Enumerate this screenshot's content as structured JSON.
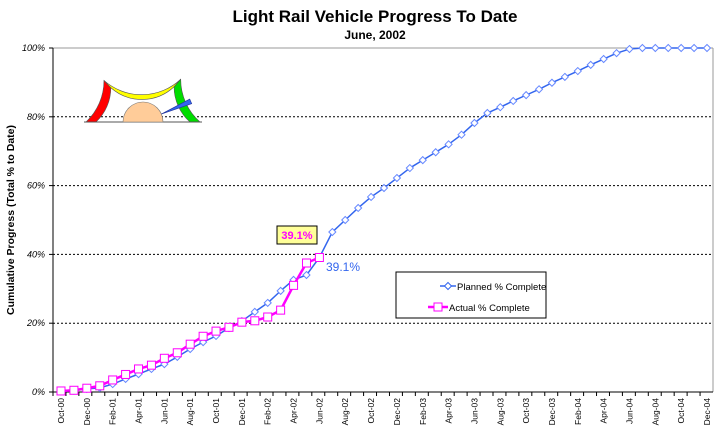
{
  "chart_data": {
    "type": "line",
    "title": "Light Rail Vehicle Progress To Date",
    "subtitle": "June, 2002",
    "xlabel": "",
    "ylabel": "Cumulative Progress (Total % to Date)",
    "ylim": [
      0,
      100
    ],
    "y_ticks": [
      "0%",
      "20%",
      "40%",
      "60%",
      "80%",
      "100%"
    ],
    "y_tick_values": [
      0,
      20,
      40,
      60,
      80,
      100
    ],
    "grid": "horizontal dotted",
    "legend_placement": "center-right",
    "x": [
      "Oct-00",
      "Nov-00",
      "Dec-00",
      "Jan-01",
      "Feb-01",
      "Mar-01",
      "Apr-01",
      "May-01",
      "Jun-01",
      "Jul-01",
      "Aug-01",
      "Sep-01",
      "Oct-01",
      "Nov-01",
      "Dec-01",
      "Jan-02",
      "Feb-02",
      "Mar-02",
      "Apr-02",
      "May-02",
      "Jun-02",
      "Jul-02",
      "Aug-02",
      "Sep-02",
      "Oct-02",
      "Nov-02",
      "Dec-02",
      "Jan-03",
      "Feb-03",
      "Mar-03",
      "Apr-03",
      "May-03",
      "Jun-03",
      "Jul-03",
      "Aug-03",
      "Sep-03",
      "Oct-03",
      "Nov-03",
      "Dec-03",
      "Jan-04",
      "Feb-04",
      "Mar-04",
      "Apr-04",
      "May-04",
      "Jun-04",
      "Jul-04",
      "Aug-04",
      "Sep-04",
      "Oct-04",
      "Nov-04",
      "Dec-04"
    ],
    "x_tick_labels": [
      "Oct-00",
      "Dec-00",
      "Feb-01",
      "Apr-01",
      "Jun-01",
      "Aug-01",
      "Oct-01",
      "Dec-01",
      "Feb-02",
      "Apr-02",
      "Jun-02",
      "Aug-02",
      "Oct-02",
      "Dec-02",
      "Feb-03",
      "Apr-03",
      "Jun-03",
      "Aug-03",
      "Oct-03",
      "Dec-03",
      "Feb-04",
      "Apr-04",
      "Jun-04",
      "Aug-04",
      "Oct-04",
      "Dec-04"
    ],
    "series": [
      {
        "name": "Planned % Complete",
        "color": "#3366ee",
        "marker": "diamond",
        "values": [
          0.3,
          0.4,
          0.9,
          1.2,
          2.3,
          3.8,
          5.2,
          6.7,
          8.1,
          10.2,
          12.5,
          14.5,
          16.3,
          18.6,
          20.6,
          23.3,
          25.9,
          29.4,
          32.6,
          34.0,
          39.1,
          46.5,
          50.0,
          53.5,
          56.7,
          59.3,
          62.2,
          65.1,
          67.4,
          69.7,
          72.0,
          74.8,
          78.2,
          81.1,
          82.8,
          84.6,
          86.3,
          88.0,
          89.9,
          91.6,
          93.3,
          95.1,
          96.8,
          98.5,
          99.7,
          100,
          100,
          100,
          100,
          100,
          100
        ]
      },
      {
        "name": "Actual % Complete",
        "color": "#ff00ff",
        "marker": "square",
        "values": [
          0.3,
          0.5,
          1.1,
          1.8,
          3.5,
          5.1,
          6.7,
          7.8,
          9.8,
          11.4,
          13.9,
          16.2,
          17.7,
          18.8,
          20.3,
          20.7,
          21.8,
          23.8,
          31.0,
          37.5,
          39.1
        ]
      }
    ],
    "annotations": [
      {
        "text": "39.1%",
        "series": "Actual % Complete",
        "style": "boxed",
        "box_color": "#ffff99",
        "text_color": "#ff00ff",
        "at": "Jun-02"
      },
      {
        "text": "39.1%",
        "series": "Planned % Complete",
        "style": "plain",
        "text_color": "#3366ee",
        "at": "Jun-02"
      }
    ],
    "gauge": {
      "segments": [
        "#ff0000",
        "#ffff00",
        "#00dd00"
      ],
      "hub_color": "#ffcc99",
      "needle_color": "#3366ee",
      "needle_fraction": 0.87
    }
  }
}
